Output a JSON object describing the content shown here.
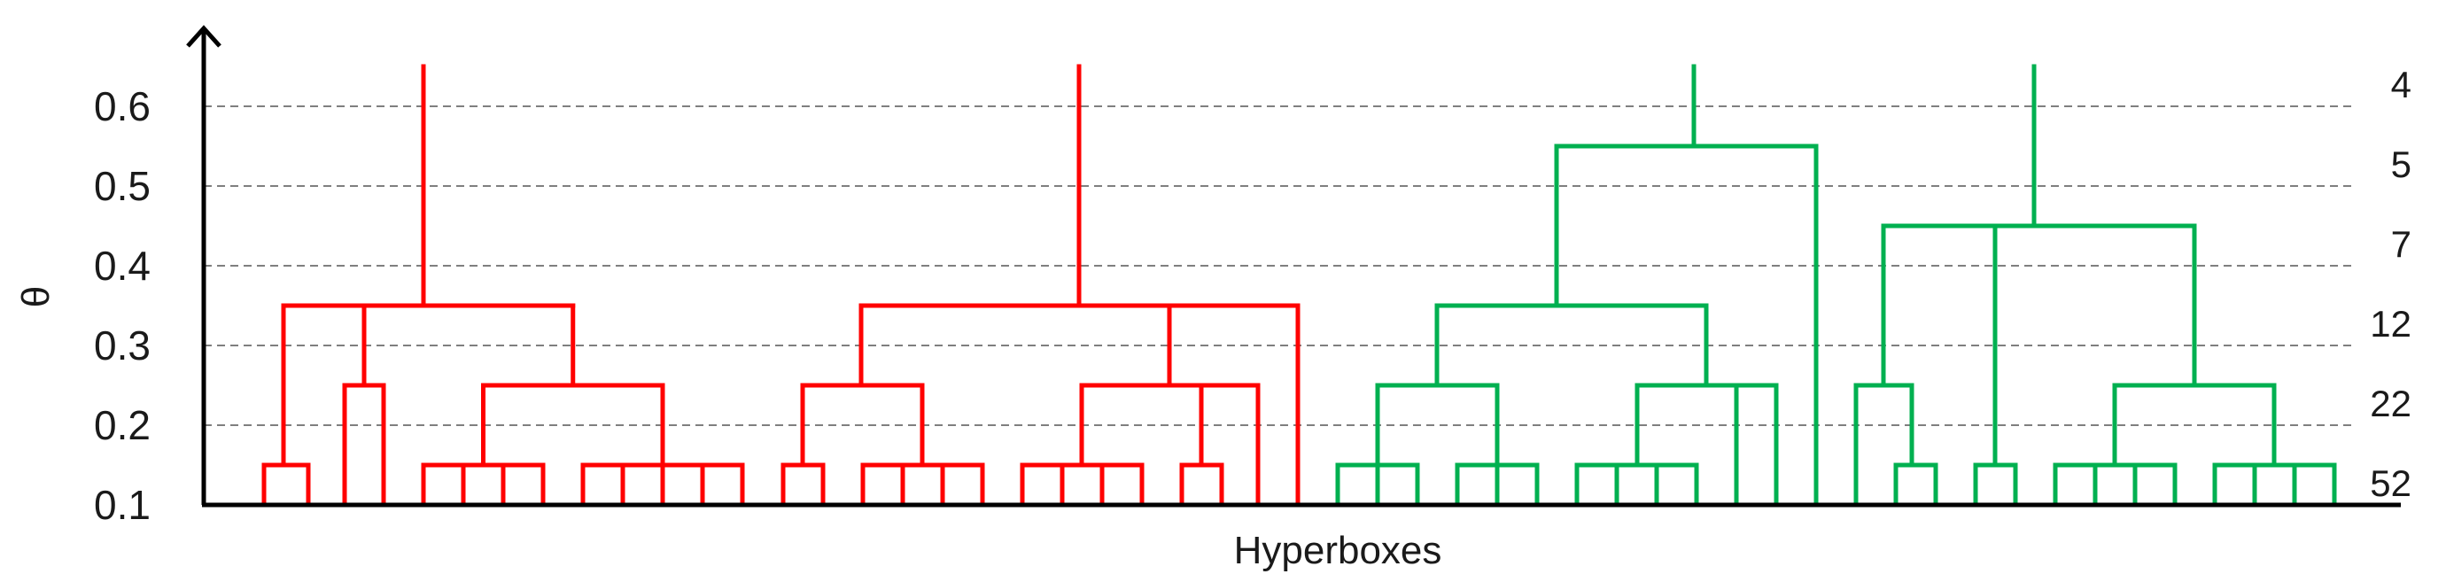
{
  "chart_data": {
    "type": "dendrogram",
    "xlabel": "Hyperboxes",
    "ylabel": "θ",
    "ylim": [
      0.1,
      0.65
    ],
    "yticks": [
      "0.1",
      "0.2",
      "0.3",
      "0.4",
      "0.5",
      "0.6"
    ],
    "ytick_values": [
      0.1,
      0.2,
      0.3,
      0.4,
      0.5,
      0.6
    ],
    "grid": "dashed horizontal at each tick",
    "cluster_counts": [
      {
        "theta": 0.6,
        "count": "4"
      },
      {
        "theta": 0.5,
        "count": "5"
      },
      {
        "theta": 0.4,
        "count": "7"
      },
      {
        "theta": 0.3,
        "count": "12"
      },
      {
        "theta": 0.2,
        "count": "22"
      },
      {
        "theta": 0.1,
        "count": "52"
      }
    ],
    "leaf_count": 52,
    "top_clusters": [
      {
        "color": "#ff0000",
        "root_theta": 0.65,
        "merge_theta": 0.35
      },
      {
        "color": "#ff0000",
        "root_theta": 0.65,
        "merge_theta": 0.35
      },
      {
        "color": "#00b050",
        "root_theta": 0.65,
        "merge_theta": 0.55
      },
      {
        "color": "#00b050",
        "root_theta": 0.65,
        "merge_theta": 0.45
      }
    ],
    "colors": {
      "group_a": "#ff0000",
      "group_b": "#00b050",
      "axis": "#000000",
      "grid": "#7f7f7f"
    }
  }
}
